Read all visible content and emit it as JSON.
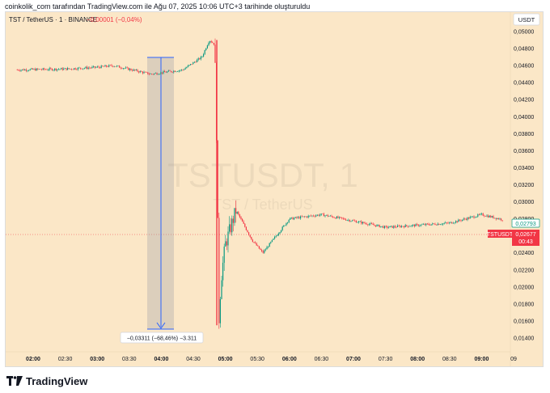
{
  "attribution": "coinkolik_com tarafından TradingView.com ile Ağu 07, 2025 10:06 UTC+3 tarihinde oluşturuldu",
  "header": {
    "symbol": "TST / TetherUS · 1 · BINANCE",
    "change": "−0,00001 (−0,04%)",
    "currency": "USDT"
  },
  "watermark": {
    "ticker": "TSTUSDT, 1",
    "pair": "TST / TetherUS"
  },
  "measure": {
    "label": "−0,03311 (−68,46%) −3.311"
  },
  "price_tags": {
    "last_close": "0,02793",
    "symbol_label": "TSTUSDT",
    "symbol_price": "0,02677",
    "countdown": "00:43"
  },
  "colors": {
    "up": "#089981",
    "down": "#f23645",
    "background": "#fbe7c7",
    "measure": "#2962ff"
  },
  "footer": {
    "brand": "TradingView",
    "logo": "tradingview-logo-icon"
  },
  "chart_data": {
    "type": "candlestick",
    "y_ticks": [
      "0,05000",
      "0,04800",
      "0,04600",
      "0,04400",
      "0,04200",
      "0,04000",
      "0,03800",
      "0,03600",
      "0,03400",
      "0,03200",
      "0,03000",
      "0,02800",
      "0,02600",
      "0,02400",
      "0,02200",
      "0,02000",
      "0,01800",
      "0,01600",
      "0,01400"
    ],
    "x_ticks": [
      "02:00",
      "02:30",
      "03:00",
      "03:30",
      "04:00",
      "04:30",
      "05:00",
      "05:30",
      "06:00",
      "06:30",
      "07:00",
      "07:30",
      "08:00",
      "08:30",
      "09:00",
      "09"
    ],
    "ylim": [
      0.013,
      0.051
    ],
    "price_path": [
      {
        "t": "01:45",
        "p": 0.0455
      },
      {
        "t": "02:30",
        "p": 0.0456
      },
      {
        "t": "03:00",
        "p": 0.0458
      },
      {
        "t": "03:15",
        "p": 0.046
      },
      {
        "t": "03:50",
        "p": 0.045
      },
      {
        "t": "04:20",
        "p": 0.0455
      },
      {
        "t": "04:38",
        "p": 0.047
      },
      {
        "t": "04:45",
        "p": 0.049
      },
      {
        "t": "04:50",
        "p": 0.0485
      },
      {
        "t": "04:52",
        "p": 0.036
      },
      {
        "t": "04:54",
        "p": 0.016
      },
      {
        "t": "04:56",
        "p": 0.021
      },
      {
        "t": "05:00",
        "p": 0.025
      },
      {
        "t": "05:10",
        "p": 0.029
      },
      {
        "t": "05:25",
        "p": 0.0255
      },
      {
        "t": "05:35",
        "p": 0.024
      },
      {
        "t": "06:00",
        "p": 0.028
      },
      {
        "t": "06:30",
        "p": 0.0285
      },
      {
        "t": "07:30",
        "p": 0.027
      },
      {
        "t": "08:30",
        "p": 0.0275
      },
      {
        "t": "09:00",
        "p": 0.0285
      },
      {
        "t": "09:20",
        "p": 0.0279
      }
    ]
  }
}
